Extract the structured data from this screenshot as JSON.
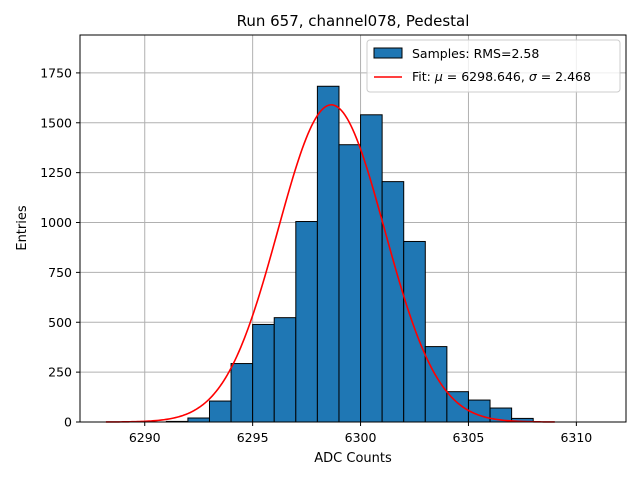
{
  "chart_data": {
    "type": "bar",
    "title": "Run 657, channel078, Pedestal",
    "xlabel": "ADC Counts",
    "ylabel": "Entries",
    "xlim": [
      6287,
      6312.3
    ],
    "ylim": [
      0,
      1940
    ],
    "xticks": [
      6290,
      6295,
      6300,
      6305,
      6310
    ],
    "yticks": [
      0,
      250,
      500,
      750,
      1000,
      1250,
      1500,
      1750
    ],
    "grid": true,
    "legend_position": "top-right",
    "colors": {
      "bars": "#1f77b4",
      "bar_edge": "#000000",
      "fit": "#ff0000",
      "grid": "#b0b0b0"
    },
    "histogram": {
      "name": "Samples: RMS=2.58",
      "bin_edges": [
        6291,
        6292,
        6293,
        6294,
        6295,
        6296,
        6297,
        6298,
        6299,
        6300,
        6301,
        6302,
        6303,
        6304,
        6305,
        6306,
        6307,
        6308
      ],
      "counts": [
        3,
        20,
        105,
        293,
        489,
        523,
        1005,
        1683,
        1390,
        1540,
        1205,
        905,
        378,
        152,
        110,
        70,
        18
      ]
    },
    "fit": {
      "name_prefix": "Fit: ",
      "mu_symbol": "μ",
      "sigma_symbol": "σ",
      "mu": 6298.646,
      "sigma": 2.468,
      "amplitude": 1590,
      "x_range": [
        6288.2,
        6309
      ]
    }
  }
}
